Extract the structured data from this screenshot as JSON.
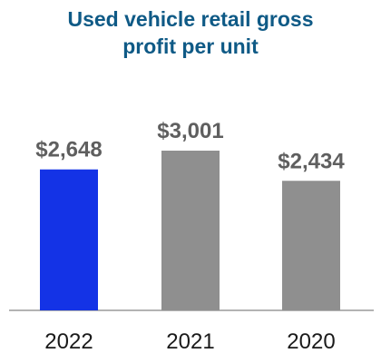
{
  "chart_data": {
    "type": "bar",
    "title_lines": [
      "Used vehicle retail gross",
      "profit per unit"
    ],
    "categories": [
      "2022",
      "2021",
      "2020"
    ],
    "values": [
      2648,
      3001,
      2434
    ],
    "value_labels": [
      "$2,648",
      "$3,001",
      "$2,434"
    ],
    "colors": [
      "#1433e6",
      "#8f8f8f",
      "#8f8f8f"
    ],
    "ylim": [
      0,
      3001
    ],
    "grid": false,
    "legend": "none",
    "xlabel": "",
    "ylabel": ""
  }
}
